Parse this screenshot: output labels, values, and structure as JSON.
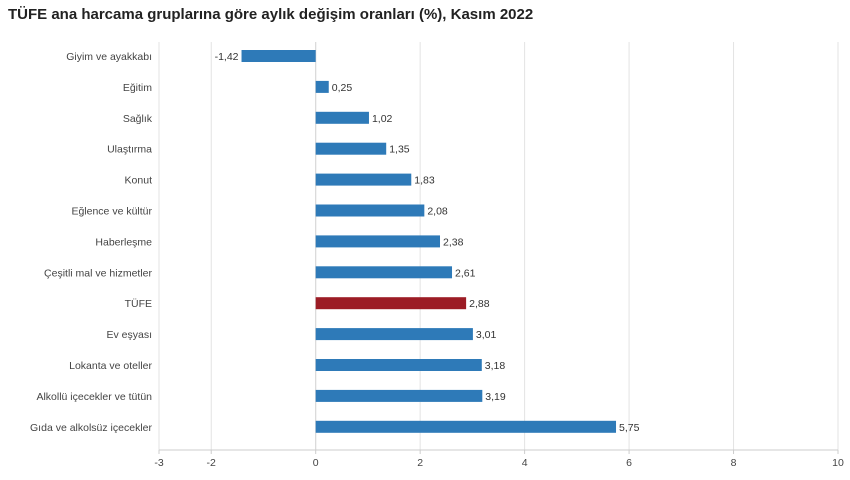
{
  "chart_data": {
    "type": "bar",
    "orientation": "horizontal",
    "title": "TÜFE ana harcama gruplarına göre aylık değişim oranları (%), Kasım 2022",
    "categories": [
      "Giyim ve ayakkabı",
      "Eğitim",
      "Sağlık",
      "Ulaştırma",
      "Konut",
      "Eğlence ve kültür",
      "Haberleşme",
      "Çeşitli mal ve hizmetler",
      "TÜFE",
      "Ev eşyası",
      "Lokanta ve oteller",
      "Alkollü içecekler ve tütün",
      "Gıda ve alkolsüz içecekler"
    ],
    "values": [
      -1.42,
      0.25,
      1.02,
      1.35,
      1.83,
      2.08,
      2.38,
      2.61,
      2.88,
      3.01,
      3.18,
      3.19,
      5.75
    ],
    "value_labels": [
      "-1,42",
      "0,25",
      "1,02",
      "1,35",
      "1,83",
      "2,08",
      "2,38",
      "2,61",
      "2,88",
      "3,01",
      "3,18",
      "3,19",
      "5,75"
    ],
    "highlight_category": "TÜFE",
    "xlim": [
      -3,
      10
    ],
    "x_ticks": [
      -3,
      -2,
      0,
      2,
      4,
      6,
      8,
      10
    ],
    "x_tick_labels": [
      "-3",
      "-2",
      "0",
      "2",
      "4",
      "6",
      "8",
      "10"
    ],
    "grid": true,
    "colors": {
      "bar": "#2e7ab8",
      "highlight": "#9c1c25",
      "grid": "#e3e3e3",
      "axis": "#cccccc"
    }
  }
}
